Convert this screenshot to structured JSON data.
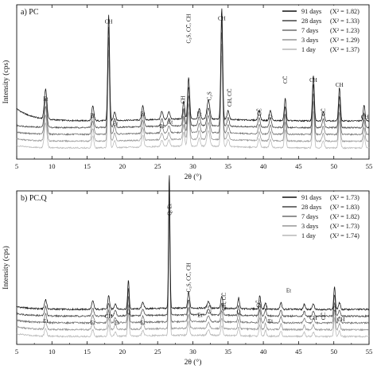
{
  "chart_data": [
    {
      "type": "line",
      "panel_label": "a) PC",
      "xlabel": "2θ (°)",
      "ylabel": "Intensity (cps)",
      "xlim": [
        5,
        55
      ],
      "xticks": [
        5,
        10,
        15,
        20,
        25,
        30,
        35,
        40,
        45,
        50,
        55
      ],
      "legend_position": "top-right",
      "series": [
        {
          "name": "91 days",
          "chi2": "(X² = 1.82)",
          "color": "#111111",
          "offset": 4
        },
        {
          "name": "28 days",
          "chi2": "(X² = 1.33)",
          "color": "#444444",
          "offset": 3
        },
        {
          "name": "7 days",
          "chi2": "(X² = 1.23)",
          "color": "#6e6e6e",
          "offset": 2
        },
        {
          "name": "3 days",
          "chi2": "(X² = 1.29)",
          "color": "#959595",
          "offset": 1
        },
        {
          "name": "1 day",
          "chi2": "(X² = 1.37)",
          "color": "#b7b7b7",
          "offset": 0
        }
      ],
      "peaks": [
        {
          "x": 9.1,
          "h": 0.27,
          "w": 0.18
        },
        {
          "x": 15.8,
          "h": 0.13,
          "w": 0.15
        },
        {
          "x": 18.05,
          "h": 0.95,
          "w": 0.13
        },
        {
          "x": 18.9,
          "h": 0.08,
          "w": 0.15
        },
        {
          "x": 22.9,
          "h": 0.13,
          "w": 0.15
        },
        {
          "x": 25.6,
          "h": 0.07,
          "w": 0.15
        },
        {
          "x": 26.6,
          "h": 0.07,
          "w": 0.15
        },
        {
          "x": 28.7,
          "h": 0.16,
          "w": 0.13
        },
        {
          "x": 29.4,
          "h": 0.37,
          "w": 0.14
        },
        {
          "x": 30.9,
          "h": 0.09,
          "w": 0.15
        },
        {
          "x": 32.2,
          "h": 0.17,
          "w": 0.2
        },
        {
          "x": 34.1,
          "h": 1.0,
          "w": 0.13
        },
        {
          "x": 35.0,
          "h": 0.08,
          "w": 0.15
        },
        {
          "x": 39.4,
          "h": 0.09,
          "w": 0.15
        },
        {
          "x": 41.0,
          "h": 0.09,
          "w": 0.15
        },
        {
          "x": 43.1,
          "h": 0.2,
          "w": 0.13
        },
        {
          "x": 47.1,
          "h": 0.41,
          "w": 0.13
        },
        {
          "x": 48.5,
          "h": 0.08,
          "w": 0.15
        },
        {
          "x": 50.8,
          "h": 0.3,
          "w": 0.13
        },
        {
          "x": 54.3,
          "h": 0.14,
          "w": 0.13
        }
      ],
      "peak_labels": [
        {
          "text": "Et",
          "x": 9.1,
          "yfrac": 0.62,
          "rot": 0
        },
        {
          "text": "Et",
          "x": 15.8,
          "yfrac": 0.73,
          "rot": 0
        },
        {
          "text": "CH",
          "x": 18.05,
          "yfrac": 0.12,
          "rot": 0
        },
        {
          "text": "Et",
          "x": 19.0,
          "yfrac": 0.78,
          "rot": 0
        },
        {
          "text": "Et",
          "x": 22.9,
          "yfrac": 0.72,
          "rot": 0
        },
        {
          "text": "Et",
          "x": 25.6,
          "yfrac": 0.8,
          "rot": 0
        },
        {
          "text": "Et",
          "x": 26.8,
          "yfrac": 0.77,
          "rot": 0
        },
        {
          "text": "CH",
          "x": 28.6,
          "yfrac": 0.64,
          "rot": -90
        },
        {
          "text": "C₃S, CC̄, CH",
          "x": 29.4,
          "yfrac": 0.25,
          "rot": -90
        },
        {
          "text": "Et",
          "x": 30.9,
          "yfrac": 0.72,
          "rot": 0
        },
        {
          "text": "C₂S",
          "x": 32.3,
          "yfrac": 0.62,
          "rot": -90
        },
        {
          "text": "CH",
          "x": 34.1,
          "yfrac": 0.1,
          "rot": 0
        },
        {
          "text": "CH, CC̄",
          "x": 35.2,
          "yfrac": 0.66,
          "rot": -90
        },
        {
          "text": "CC̄",
          "x": 39.4,
          "yfrac": 0.72,
          "rot": -90
        },
        {
          "text": "Et",
          "x": 41.0,
          "yfrac": 0.74,
          "rot": 0
        },
        {
          "text": "CC̄",
          "x": 43.1,
          "yfrac": 0.51,
          "rot": -90
        },
        {
          "text": "CH",
          "x": 47.1,
          "yfrac": 0.5,
          "rot": 0
        },
        {
          "text": "CC̄",
          "x": 48.5,
          "yfrac": 0.72,
          "rot": -90
        },
        {
          "text": "CH",
          "x": 50.8,
          "yfrac": 0.53,
          "rot": 0
        },
        {
          "text": "CH",
          "x": 54.4,
          "yfrac": 0.74,
          "rot": 0
        }
      ]
    },
    {
      "type": "line",
      "panel_label": "b) PC.Q",
      "xlabel": "2θ (°)",
      "ylabel": "Intensity (cps)",
      "xlim": [
        5,
        55
      ],
      "xticks": [
        5,
        10,
        15,
        20,
        25,
        30,
        35,
        40,
        45,
        50,
        55
      ],
      "legend_position": "top-right",
      "series": [
        {
          "name": "91 days",
          "chi2": "(X² = 1.73)",
          "color": "#111111",
          "offset": 4
        },
        {
          "name": "28 days",
          "chi2": "(X² = 1.83)",
          "color": "#444444",
          "offset": 3
        },
        {
          "name": "7 days",
          "chi2": "(X² = 1.82)",
          "color": "#6e6e6e",
          "offset": 2
        },
        {
          "name": "3 days",
          "chi2": "(X² = 1.73)",
          "color": "#959595",
          "offset": 1
        },
        {
          "name": "1 day",
          "chi2": "(X² = 1.74)",
          "color": "#b7b7b7",
          "offset": 0
        }
      ],
      "peaks": [
        {
          "x": 9.1,
          "h": 0.07,
          "w": 0.15
        },
        {
          "x": 15.8,
          "h": 0.06,
          "w": 0.15
        },
        {
          "x": 18.05,
          "h": 0.1,
          "w": 0.13
        },
        {
          "x": 19.0,
          "h": 0.04,
          "w": 0.15
        },
        {
          "x": 20.85,
          "h": 0.21,
          "w": 0.11
        },
        {
          "x": 22.9,
          "h": 0.05,
          "w": 0.15
        },
        {
          "x": 26.65,
          "h": 1.0,
          "w": 0.1
        },
        {
          "x": 29.4,
          "h": 0.12,
          "w": 0.13
        },
        {
          "x": 32.2,
          "h": 0.05,
          "w": 0.18
        },
        {
          "x": 34.1,
          "h": 0.09,
          "w": 0.13
        },
        {
          "x": 36.5,
          "h": 0.08,
          "w": 0.12
        },
        {
          "x": 39.5,
          "h": 0.1,
          "w": 0.12
        },
        {
          "x": 40.3,
          "h": 0.05,
          "w": 0.12
        },
        {
          "x": 42.5,
          "h": 0.05,
          "w": 0.12
        },
        {
          "x": 45.8,
          "h": 0.04,
          "w": 0.12
        },
        {
          "x": 47.1,
          "h": 0.04,
          "w": 0.13
        },
        {
          "x": 50.1,
          "h": 0.17,
          "w": 0.11
        },
        {
          "x": 50.8,
          "h": 0.05,
          "w": 0.13
        }
      ],
      "peak_labels": [
        {
          "text": "Et",
          "x": 9.1,
          "yfrac": 0.86,
          "rot": 0
        },
        {
          "text": "Et",
          "x": 15.8,
          "yfrac": 0.87,
          "rot": 0
        },
        {
          "text": "CH",
          "x": 18.05,
          "yfrac": 0.83,
          "rot": 0
        },
        {
          "text": "Et",
          "x": 19.2,
          "yfrac": 0.87,
          "rot": 0
        },
        {
          "text": "Q",
          "x": 20.85,
          "yfrac": 0.8,
          "rot": 0
        },
        {
          "text": "Et",
          "x": 22.9,
          "yfrac": 0.87,
          "rot": 0
        },
        {
          "text": "Q, Et",
          "x": 26.65,
          "yfrac": 0.16,
          "rot": -90
        },
        {
          "text": "C₃S, CC̄, CH",
          "x": 29.4,
          "yfrac": 0.66,
          "rot": -90
        },
        {
          "text": "Et",
          "x": 31.0,
          "yfrac": 0.82,
          "rot": 0
        },
        {
          "text": "C₂S",
          "x": 32.3,
          "yfrac": 0.8,
          "rot": -90
        },
        {
          "text": "CH, CC̄",
          "x": 34.4,
          "yfrac": 0.78,
          "rot": -90
        },
        {
          "text": "Q",
          "x": 36.5,
          "yfrac": 0.8,
          "rot": 0
        },
        {
          "text": "CC̄",
          "x": 39.3,
          "yfrac": 0.76,
          "rot": -90
        },
        {
          "text": "Q",
          "x": 40.3,
          "yfrac": 0.77,
          "rot": 0
        },
        {
          "text": "Et",
          "x": 41.0,
          "yfrac": 0.86,
          "rot": 0
        },
        {
          "text": "Et",
          "x": 43.6,
          "yfrac": 0.66,
          "rot": 0
        },
        {
          "text": "CH",
          "x": 47.1,
          "yfrac": 0.84,
          "rot": 0
        },
        {
          "text": "CC̄",
          "x": 48.5,
          "yfrac": 0.84,
          "rot": -90
        },
        {
          "text": "Q",
          "x": 50.1,
          "yfrac": 0.78,
          "rot": 0
        },
        {
          "text": "CH",
          "x": 51.0,
          "yfrac": 0.85,
          "rot": 0
        }
      ]
    }
  ]
}
